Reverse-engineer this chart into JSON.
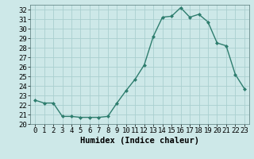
{
  "x": [
    0,
    1,
    2,
    3,
    4,
    5,
    6,
    7,
    8,
    9,
    10,
    11,
    12,
    13,
    14,
    15,
    16,
    17,
    18,
    19,
    20,
    21,
    22,
    23
  ],
  "y": [
    22.5,
    22.2,
    22.2,
    20.8,
    20.8,
    20.7,
    20.7,
    20.7,
    20.8,
    22.2,
    23.5,
    24.7,
    26.2,
    29.2,
    31.2,
    31.3,
    32.2,
    31.2,
    31.5,
    30.7,
    28.5,
    28.2,
    25.2,
    23.7
  ],
  "line_color": "#2e7d6e",
  "marker": "D",
  "marker_size": 2.0,
  "bg_color": "#cde8e8",
  "grid_color": "#aacfcf",
  "xlabel": "Humidex (Indice chaleur)",
  "ylim": [
    20,
    32.5
  ],
  "xlim": [
    -0.5,
    23.5
  ],
  "yticks": [
    20,
    21,
    22,
    23,
    24,
    25,
    26,
    27,
    28,
    29,
    30,
    31,
    32
  ],
  "xticks": [
    0,
    1,
    2,
    3,
    4,
    5,
    6,
    7,
    8,
    9,
    10,
    11,
    12,
    13,
    14,
    15,
    16,
    17,
    18,
    19,
    20,
    21,
    22,
    23
  ],
  "xlabel_fontsize": 7.5,
  "tick_fontsize": 6.5,
  "linewidth": 1.0
}
